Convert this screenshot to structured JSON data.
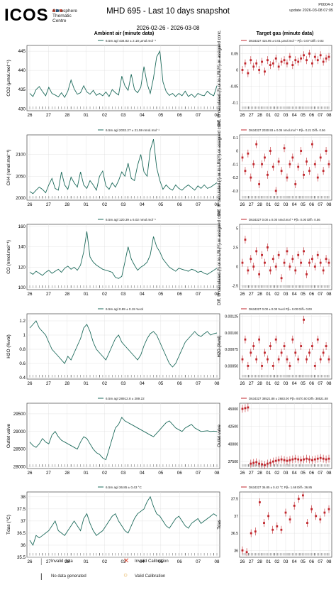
{
  "header": {
    "logo": "ICOS",
    "logo_subtitle": [
      "Atmosphere",
      "Thematic",
      "Centre"
    ],
    "title": "MHD 695 - Last 10 days snapshot",
    "date_range": "2026-02-26 - 2026-03-08",
    "code": "P0004-3",
    "update": "update  2026-03-08 07:05"
  },
  "columns": {
    "left": "Ambient air (minute data)",
    "right": "Target gas (minute data)"
  },
  "colors": {
    "ambient": "#1e6b5c",
    "target": "#c0262c",
    "grid": "#dddddd",
    "flag": "#777777"
  },
  "x_ticks": [
    "26",
    "27",
    "28",
    "01",
    "02",
    "03",
    "04",
    "05",
    "06",
    "07",
    "08"
  ],
  "legend": {
    "invalid_data": "Invalid data",
    "no_data": "No data generated",
    "invalid_cal": "Invalid Calibration",
    "valid_cal": "Valid Calibration"
  },
  "chart_data": [
    {
      "type": "line",
      "ylabel": "CO2 (µmol.mol⁻¹)",
      "legend": "6.5m agl 434.82 ± 2.18 µmol.mol⁻¹",
      "ylim": [
        429.5,
        446.5
      ],
      "yticks": [
        430,
        435,
        440,
        445
      ],
      "series": [
        {
          "values": [
            434.0,
            433.2,
            435.0,
            435.8,
            434.5,
            433.4,
            435.6,
            434.0,
            433.6,
            433.1,
            434.2,
            433.0,
            434.6,
            437.5,
            435.2,
            433.8,
            434.2,
            436.0,
            434.4,
            433.8,
            434.8,
            433.5,
            434.0,
            433.4,
            434.4,
            433.2,
            435.0,
            434.2,
            433.6,
            438.5,
            436.0,
            434.8,
            439.0,
            435.0,
            434.2,
            435.6,
            441.0,
            436.5,
            434.0,
            438.0,
            443.5,
            445.0,
            437.0,
            434.5,
            433.5,
            434.0,
            433.2,
            434.0,
            433.4,
            434.6,
            433.2,
            433.8,
            433.0,
            434.0,
            433.6,
            433.4,
            434.6,
            433.8,
            433.4,
            436.0
          ]
        }
      ]
    },
    {
      "type": "scatter",
      "ylabel": "Diff. to calculated (*) or to LRI(**) or assigned conc.",
      "legend": "D634327 415.95 ± 0.01 µmol.mol⁻¹ Pβ= 0.07 Diff= 0.03",
      "ylim": [
        -0.125,
        0.075
      ],
      "yticks": [
        0.05,
        0.0,
        -0.05,
        -0.1
      ],
      "series": [
        {
          "values": [
            0.0,
            0.02,
            -0.01,
            0.03,
            0.01,
            0.02,
            0.0,
            0.025,
            -0.005,
            0.03,
            0.015,
            0.02,
            0.035,
            0.01,
            0.025,
            0.03,
            0.02,
            0.04,
            0.015,
            0.03,
            0.025,
            0.035,
            0.045,
            0.03,
            0.05,
            0.02,
            0.04,
            0.03,
            0.045,
            0.025,
            0.035,
            0.04
          ]
        }
      ]
    },
    {
      "type": "line",
      "ylabel": "CH4 (nmol.mol⁻¹)",
      "legend": "6.5m agl 2032.27 ± 21.59 nmol.mol⁻¹",
      "ylim": [
        1995,
        2145
      ],
      "yticks": [
        2000,
        2050,
        2100
      ],
      "series": [
        {
          "values": [
            2015,
            2010,
            2018,
            2025,
            2020,
            2012,
            2030,
            2045,
            2022,
            2018,
            2060,
            2030,
            2020,
            2048,
            2035,
            2025,
            2060,
            2030,
            2022,
            2040,
            2030,
            2018,
            2050,
            2062,
            2028,
            2020,
            2035,
            2025,
            2040,
            2060,
            2050,
            2080,
            2045,
            2040,
            2075,
            2100,
            2060,
            2050,
            2110,
            2135,
            2070,
            2040,
            2020,
            2030,
            2022,
            2018,
            2030,
            2022,
            2018,
            2025,
            2030,
            2024,
            2018,
            2028,
            2022,
            2030,
            2022,
            2025,
            2030,
            2035
          ]
        }
      ]
    },
    {
      "type": "scatter",
      "ylabel": "Diff. to calculated (*) or to LRI(**) or assigned conc.",
      "legend": "D634327 2030.93 ± 0.05 nmol.mol⁻¹ Pβ= 0.21 Diff= 0.56",
      "ylim": [
        -0.37,
        0.12
      ],
      "yticks": [
        0.1,
        0.0,
        -0.1,
        -0.2,
        -0.3
      ],
      "series": [
        {
          "values": [
            -0.05,
            -0.15,
            -0.02,
            -0.2,
            -0.1,
            0.05,
            -0.25,
            -0.1,
            -0.05,
            -0.18,
            0.0,
            -0.12,
            -0.3,
            -0.08,
            -0.15,
            0.02,
            -0.2,
            -0.1,
            -0.05,
            -0.25,
            -0.12,
            0.0,
            -0.18,
            -0.08,
            -0.15,
            0.05,
            -0.1,
            -0.2,
            -0.05,
            -0.15,
            0.0,
            -0.1
          ]
        }
      ]
    },
    {
      "type": "line",
      "ylabel": "CO (nmol.mol⁻¹)",
      "legend": "6.5m agl 120.39 ± 6.02 nmol.mol⁻¹",
      "ylim": [
        98,
        162
      ],
      "yticks": [
        100,
        120,
        140,
        160
      ],
      "series": [
        {
          "values": [
            115,
            113,
            116,
            114,
            112,
            115,
            117,
            114,
            116,
            118,
            115,
            119,
            121,
            118,
            120,
            117,
            122,
            135,
            155,
            130,
            125,
            122,
            120,
            118,
            117,
            116,
            115,
            110,
            109,
            111,
            125,
            140,
            128,
            122,
            117,
            120,
            122,
            125,
            132,
            150,
            140,
            135,
            128,
            124,
            120,
            118,
            116,
            119,
            118,
            117,
            116,
            118,
            117,
            115,
            116,
            114,
            113,
            115,
            117,
            119
          ]
        }
      ]
    },
    {
      "type": "scatter",
      "ylabel": "Diff. to calculated (*) or to LRI(**) or assigned conc.",
      "legend": "D634327 0.00 ± 0.00 nmol.mol⁻¹ Pβ= 0.00 Diff= 0.56",
      "ylim": [
        -3.0,
        5.5
      ],
      "yticks": [
        5.0,
        2.5,
        0.0,
        -2.5
      ],
      "series": [
        {
          "values": [
            0.5,
            3.5,
            -0.5,
            1.0,
            0.0,
            2.0,
            -1.0,
            1.5,
            0.5,
            2.5,
            -0.5,
            1.0,
            0.0,
            1.5,
            -1.5,
            0.5,
            2.0,
            0.0,
            1.0,
            -0.5,
            1.5,
            0.5,
            2.0,
            -1.0,
            0.5,
            1.0,
            0.0,
            1.5,
            0.5,
            -0.5,
            1.0,
            0.5
          ]
        }
      ]
    },
    {
      "type": "line",
      "ylabel": "H2O (%vol)",
      "legend": "6.5m agl 0.89 ± 0.19 %vol",
      "ylim": [
        0.38,
        1.3
      ],
      "yticks": [
        0.4,
        0.6,
        0.8,
        1.0,
        1.2
      ],
      "series": [
        {
          "values": [
            1.1,
            1.15,
            1.2,
            1.1,
            1.05,
            1.0,
            0.9,
            0.8,
            0.75,
            0.7,
            0.65,
            0.6,
            0.7,
            0.65,
            0.75,
            0.85,
            0.95,
            1.1,
            1.15,
            1.05,
            0.9,
            0.8,
            0.75,
            0.7,
            0.65,
            0.75,
            0.85,
            0.95,
            1.0,
            0.9,
            0.85,
            0.8,
            0.75,
            0.7,
            0.65,
            0.72,
            0.85,
            0.95,
            1.02,
            1.05,
            1.0,
            0.9,
            0.8,
            0.7,
            0.6,
            0.55,
            0.6,
            0.7,
            0.8,
            0.9,
            0.95,
            1.0,
            1.05,
            1.0,
            0.98,
            1.02,
            1.05,
            1.0,
            1.02,
            1.03
          ]
        }
      ]
    },
    {
      "type": "scatter",
      "ylabel": "H2O (%vol)",
      "legend": "D634327 0.00 ± 0.00 %vol Pβ= 0.00 Diff= 0.00",
      "ylim": [
        0.0003,
        0.00129
      ],
      "yticks": [
        0.0005,
        0.00075,
        0.001,
        0.00125
      ],
      "series": [
        {
          "values": [
            0.0006,
            0.0009,
            0.0005,
            0.0007,
            0.0008,
            0.0006,
            0.0009,
            0.0005,
            0.0007,
            0.0006,
            0.0008,
            0.0005,
            0.0009,
            0.0006,
            0.0007,
            0.0008,
            0.0006,
            0.0005,
            0.0009,
            0.0007,
            0.0006,
            0.0008,
            0.0012,
            0.0006,
            0.0007,
            0.0008,
            0.0005,
            0.0009,
            0.0006,
            0.0007,
            0.0008,
            0.0006
          ]
        }
      ]
    },
    {
      "type": "line",
      "ylabel": "Outlet valve",
      "legend": "6.5m agl 28912.8 ± 289.22",
      "ylim": [
        27950,
        29800
      ],
      "yticks": [
        28000,
        28500,
        29000,
        29500
      ],
      "series": [
        {
          "values": [
            28700,
            28600,
            28550,
            28650,
            28800,
            28700,
            28650,
            28900,
            29000,
            28850,
            28750,
            28700,
            28650,
            28600,
            28550,
            28500,
            28700,
            28850,
            28800,
            28650,
            28500,
            28400,
            28350,
            28250,
            28200,
            28500,
            28800,
            29100,
            29200,
            29400,
            29300,
            29250,
            29200,
            29150,
            29100,
            29050,
            29000,
            28950,
            28900,
            28850,
            28950,
            29050,
            29150,
            29250,
            29300,
            29200,
            29100,
            29050,
            29000,
            29100,
            29150,
            29200,
            29100,
            29050,
            29000,
            29010,
            29020,
            29000,
            29010,
            29000
          ]
        }
      ]
    },
    {
      "type": "scatter",
      "ylabel": "Outlet valve",
      "legend": "D634327 38521.88 ± 2683.00 Pβ= 8470.50 Diff= 38521.88",
      "ylim": [
        36500,
        45800
      ],
      "yticks": [
        37500,
        40000,
        42500,
        45000
      ],
      "series": [
        {
          "values": [
            45000,
            45100,
            45200,
            37200,
            37300,
            37400,
            37200,
            37100,
            37000,
            37200,
            37300,
            37500,
            37600,
            37700,
            37800,
            37700,
            37600,
            37700,
            37800,
            37900,
            37800,
            37700,
            37800,
            37900,
            37800,
            37700,
            37800,
            37900,
            38000,
            37900,
            37800,
            37900
          ]
        }
      ]
    },
    {
      "type": "line",
      "ylabel": "Tdas (°C)",
      "legend": "6.5m agl 36.85 ± 0.43 °C",
      "ylim": [
        35.5,
        38.2
      ],
      "yticks": [
        35.5,
        36.0,
        36.5,
        37.0,
        37.5,
        38.0
      ],
      "series": [
        {
          "values": [
            36.2,
            36.0,
            36.4,
            36.3,
            36.4,
            36.5,
            36.6,
            36.8,
            37.0,
            36.6,
            36.5,
            36.4,
            36.6,
            36.8,
            37.0,
            36.8,
            36.6,
            37.1,
            37.3,
            36.9,
            36.6,
            36.4,
            36.5,
            36.6,
            36.8,
            37.0,
            37.2,
            37.3,
            37.0,
            36.8,
            36.6,
            36.5,
            36.8,
            37.1,
            37.3,
            37.4,
            37.5,
            37.8,
            38.0,
            37.6,
            37.3,
            37.2,
            37.0,
            36.8,
            36.7,
            36.9,
            37.1,
            37.2,
            37.0,
            36.8,
            36.7,
            36.9,
            37.0,
            37.1,
            36.9,
            37.0,
            37.1,
            37.2,
            37.3,
            37.2
          ]
        }
      ]
    },
    {
      "type": "scatter",
      "ylabel": "Tdas",
      "legend": "D634327 36.85 ± 0.42 °C Pβ= 1.68 Diff= 36.85",
      "ylim": [
        35.8,
        37.7
      ],
      "yticks": [
        36.0,
        36.5,
        37.0,
        37.5
      ],
      "series": [
        {
          "values": [
            36.0,
            35.95,
            36.5,
            36.55,
            37.4,
            36.8,
            37.0,
            36.6,
            36.7,
            36.6,
            37.1,
            36.9,
            37.3,
            37.5,
            37.6,
            36.8,
            37.2,
            37.0,
            36.9,
            37.1,
            37.2
          ]
        }
      ]
    }
  ]
}
